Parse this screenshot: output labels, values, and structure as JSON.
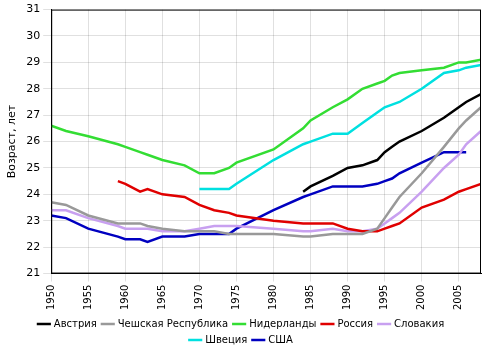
{
  "chart_data": {
    "type": "line",
    "y_label": "Возраст, лет",
    "x": [
      1950,
      1952,
      1955,
      1959,
      1960,
      1962,
      1963,
      1965,
      1968,
      1970,
      1972,
      1974,
      1975,
      1980,
      1984,
      1985,
      1988,
      1990,
      1992,
      1994,
      1995,
      1996,
      1997,
      2000,
      2003,
      2005,
      2006,
      2008
    ],
    "series": [
      {
        "name": "Австрия",
        "color": "#000000",
        "values": [
          null,
          null,
          null,
          null,
          null,
          null,
          null,
          null,
          null,
          null,
          null,
          null,
          null,
          null,
          24.1,
          24.3,
          24.7,
          25.0,
          25.1,
          25.3,
          25.6,
          25.8,
          26.0,
          26.4,
          26.9,
          27.3,
          27.5,
          27.8
        ]
      },
      {
        "name": "Чешская Республика",
        "color": "#999999",
        "values": [
          23.7,
          23.6,
          23.2,
          22.9,
          22.9,
          22.9,
          22.8,
          22.7,
          22.6,
          22.6,
          22.6,
          22.5,
          22.5,
          22.5,
          22.4,
          22.4,
          22.5,
          22.5,
          22.5,
          22.7,
          23.1,
          23.5,
          23.9,
          24.8,
          25.8,
          26.5,
          26.8,
          27.3
        ]
      },
      {
        "name": "Нидерланды",
        "color": "#33dd33",
        "values": [
          26.6,
          26.4,
          26.2,
          25.9,
          25.8,
          25.6,
          25.5,
          25.3,
          25.1,
          24.8,
          24.8,
          25.0,
          25.2,
          25.7,
          26.5,
          26.8,
          27.3,
          27.6,
          28.0,
          28.2,
          28.3,
          28.5,
          28.6,
          28.7,
          28.8,
          29.0,
          29.0,
          29.1
        ]
      },
      {
        "name": "Россия",
        "color": "#e00000",
        "values": [
          null,
          null,
          null,
          24.5,
          24.4,
          24.1,
          24.2,
          24.0,
          23.9,
          23.6,
          23.4,
          23.3,
          23.2,
          23.0,
          22.9,
          22.9,
          22.9,
          22.7,
          22.6,
          22.6,
          22.7,
          22.8,
          22.9,
          23.5,
          23.8,
          24.1,
          24.2,
          24.4
        ]
      },
      {
        "name": "Словакия",
        "color": "#c8a0f0",
        "values": [
          23.4,
          23.4,
          23.1,
          22.8,
          22.7,
          22.7,
          22.7,
          22.6,
          22.6,
          22.7,
          22.8,
          22.8,
          22.8,
          22.7,
          22.6,
          22.6,
          22.7,
          22.6,
          22.6,
          22.7,
          22.9,
          23.1,
          23.3,
          24.1,
          25.0,
          25.5,
          25.9,
          26.4
        ]
      },
      {
        "name": "Швеция",
        "color": "#00e0e0",
        "values": [
          null,
          null,
          null,
          null,
          null,
          null,
          null,
          null,
          null,
          24.2,
          24.2,
          24.2,
          24.4,
          25.3,
          25.9,
          26.0,
          26.3,
          26.3,
          26.7,
          27.1,
          27.3,
          27.4,
          27.5,
          28.0,
          28.6,
          28.7,
          28.8,
          28.9
        ]
      },
      {
        "name": "США",
        "color": "#0000c0",
        "values": [
          23.2,
          23.1,
          22.7,
          22.4,
          22.3,
          22.3,
          22.2,
          22.4,
          22.4,
          22.5,
          22.5,
          22.5,
          22.7,
          23.4,
          23.9,
          24.0,
          24.3,
          24.3,
          24.3,
          24.4,
          24.5,
          24.6,
          24.8,
          25.2,
          25.6,
          25.6,
          25.6,
          null
        ]
      }
    ],
    "xlim": [
      1950,
      2008
    ],
    "xticks": [
      1950,
      1955,
      1960,
      1965,
      1970,
      1975,
      1980,
      1985,
      1990,
      1995,
      2000,
      2005
    ],
    "ylim": [
      21,
      31
    ],
    "yticks": [
      21,
      22,
      23,
      24,
      25,
      26,
      27,
      28,
      29,
      30,
      31
    ],
    "grid": true,
    "legend": "bottom"
  }
}
